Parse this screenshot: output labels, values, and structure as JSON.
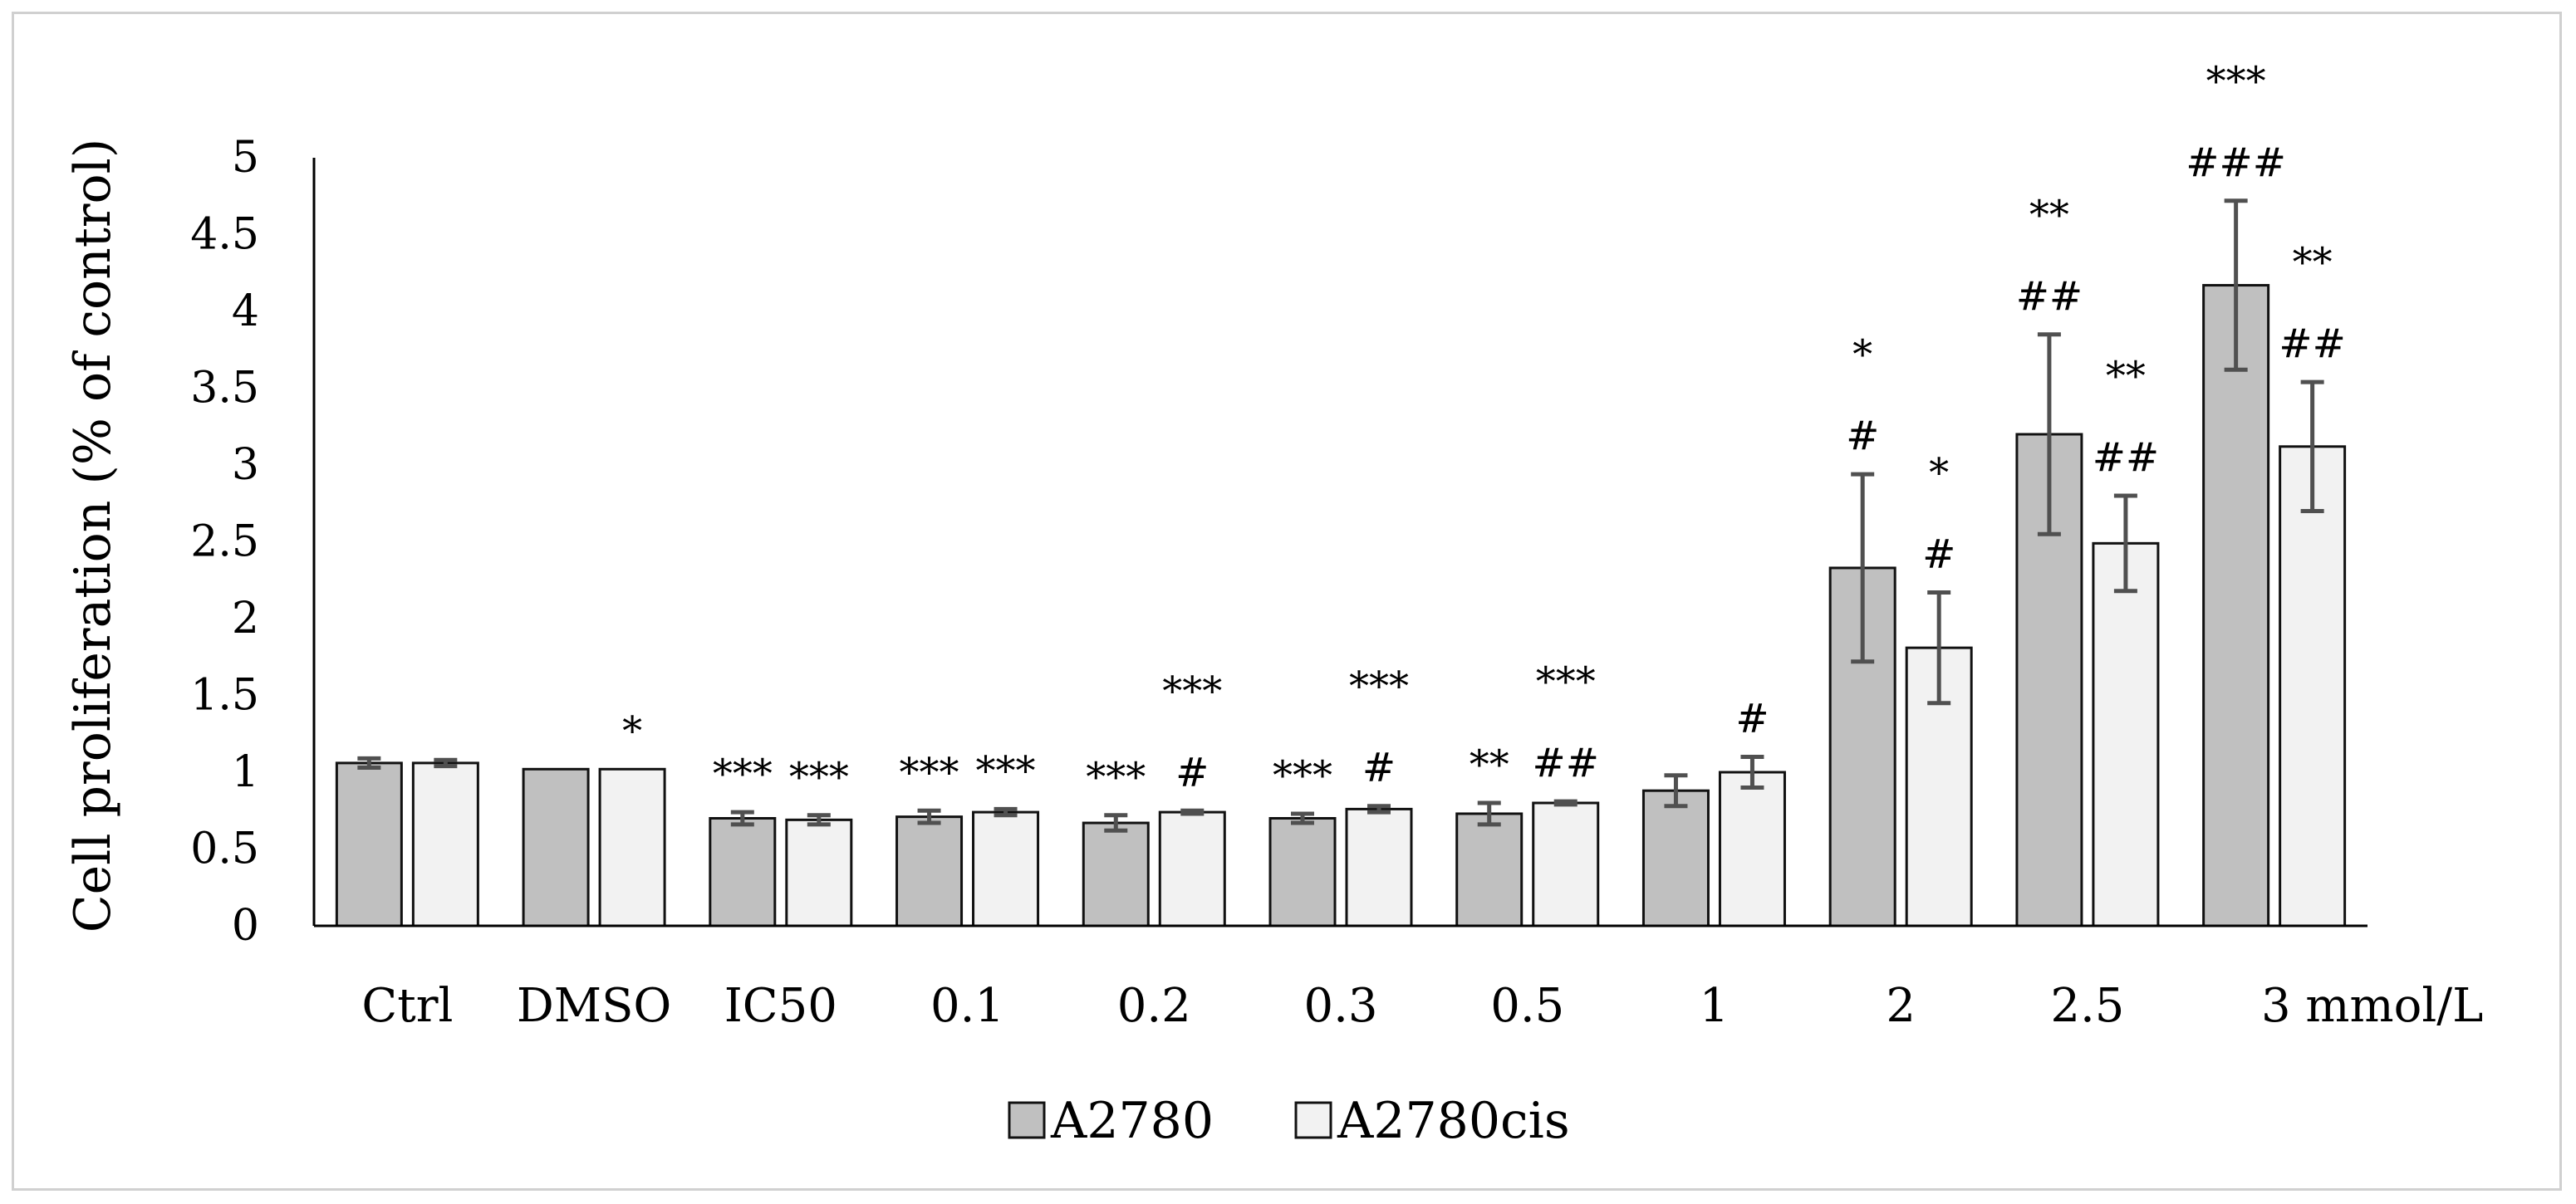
{
  "chart_data": {
    "type": "bar",
    "ylabel": "Cell proliferation (% of control)",
    "xlabel": "",
    "ylim": [
      0,
      5
    ],
    "yticks": [
      "0",
      "0.5",
      "1",
      "1.5",
      "2",
      "2.5",
      "3",
      "3.5",
      "4",
      "4.5",
      "5"
    ],
    "categories": [
      "Ctrl",
      "DMSO",
      "IC50",
      "0.1",
      "0.2",
      "0.3",
      "0.5",
      "1",
      "2",
      "2.5",
      "3 mmol/L"
    ],
    "grid": false,
    "legend_position": "bottom",
    "series": [
      {
        "name": "A2780",
        "color": "#c0c0c0",
        "values": [
          1.06,
          1.02,
          0.7,
          0.71,
          0.67,
          0.7,
          0.73,
          0.88,
          2.33,
          3.2,
          4.17
        ],
        "errors": [
          0.03,
          0.0,
          0.04,
          0.04,
          0.05,
          0.03,
          0.07,
          0.1,
          0.61,
          0.65,
          0.55
        ],
        "annotations": [
          "",
          "",
          "***",
          "***",
          "***",
          "***",
          "**",
          "",
          "*\n#",
          "**\n##",
          "***\n###"
        ]
      },
      {
        "name": "A2780cis",
        "color": "#f2f2f2",
        "values": [
          1.06,
          1.02,
          0.69,
          0.74,
          0.74,
          0.76,
          0.8,
          1.0,
          1.81,
          2.49,
          3.12
        ],
        "errors": [
          0.02,
          0.0,
          0.03,
          0.02,
          0.01,
          0.02,
          0.01,
          0.1,
          0.36,
          0.31,
          0.42
        ],
        "annotations": [
          "",
          "*",
          "***",
          "***",
          "***\n#",
          "***\n#",
          "***\n##",
          "#",
          "*\n#",
          "**\n##",
          "**\n##"
        ]
      }
    ]
  }
}
